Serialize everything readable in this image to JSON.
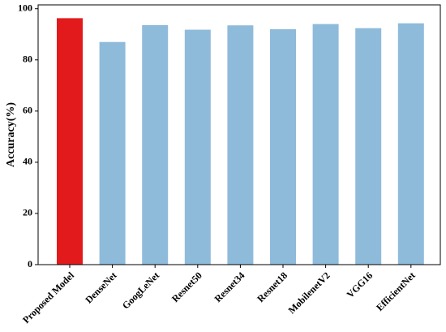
{
  "chart_data": {
    "type": "bar",
    "ylabel": "Accuracy(%)",
    "categories": [
      "Proposed Model",
      "DenseNet",
      "GoogLeNet",
      "Resnet50",
      "Resnet34",
      "Resnet18",
      "MobilenetV2",
      "VGG16",
      "EfficientNet"
    ],
    "values": [
      96.3,
      87.0,
      93.6,
      91.8,
      93.5,
      92.0,
      94.0,
      92.4,
      94.3
    ],
    "colors": [
      "#e31a1c",
      "#8fbbdb",
      "#8fbbdb",
      "#8fbbdb",
      "#8fbbdb",
      "#8fbbdb",
      "#8fbbdb",
      "#8fbbdb",
      "#8fbbdb"
    ],
    "ylim": [
      0,
      101.5
    ],
    "yticks": [
      0,
      20,
      40,
      60,
      80,
      100
    ]
  }
}
